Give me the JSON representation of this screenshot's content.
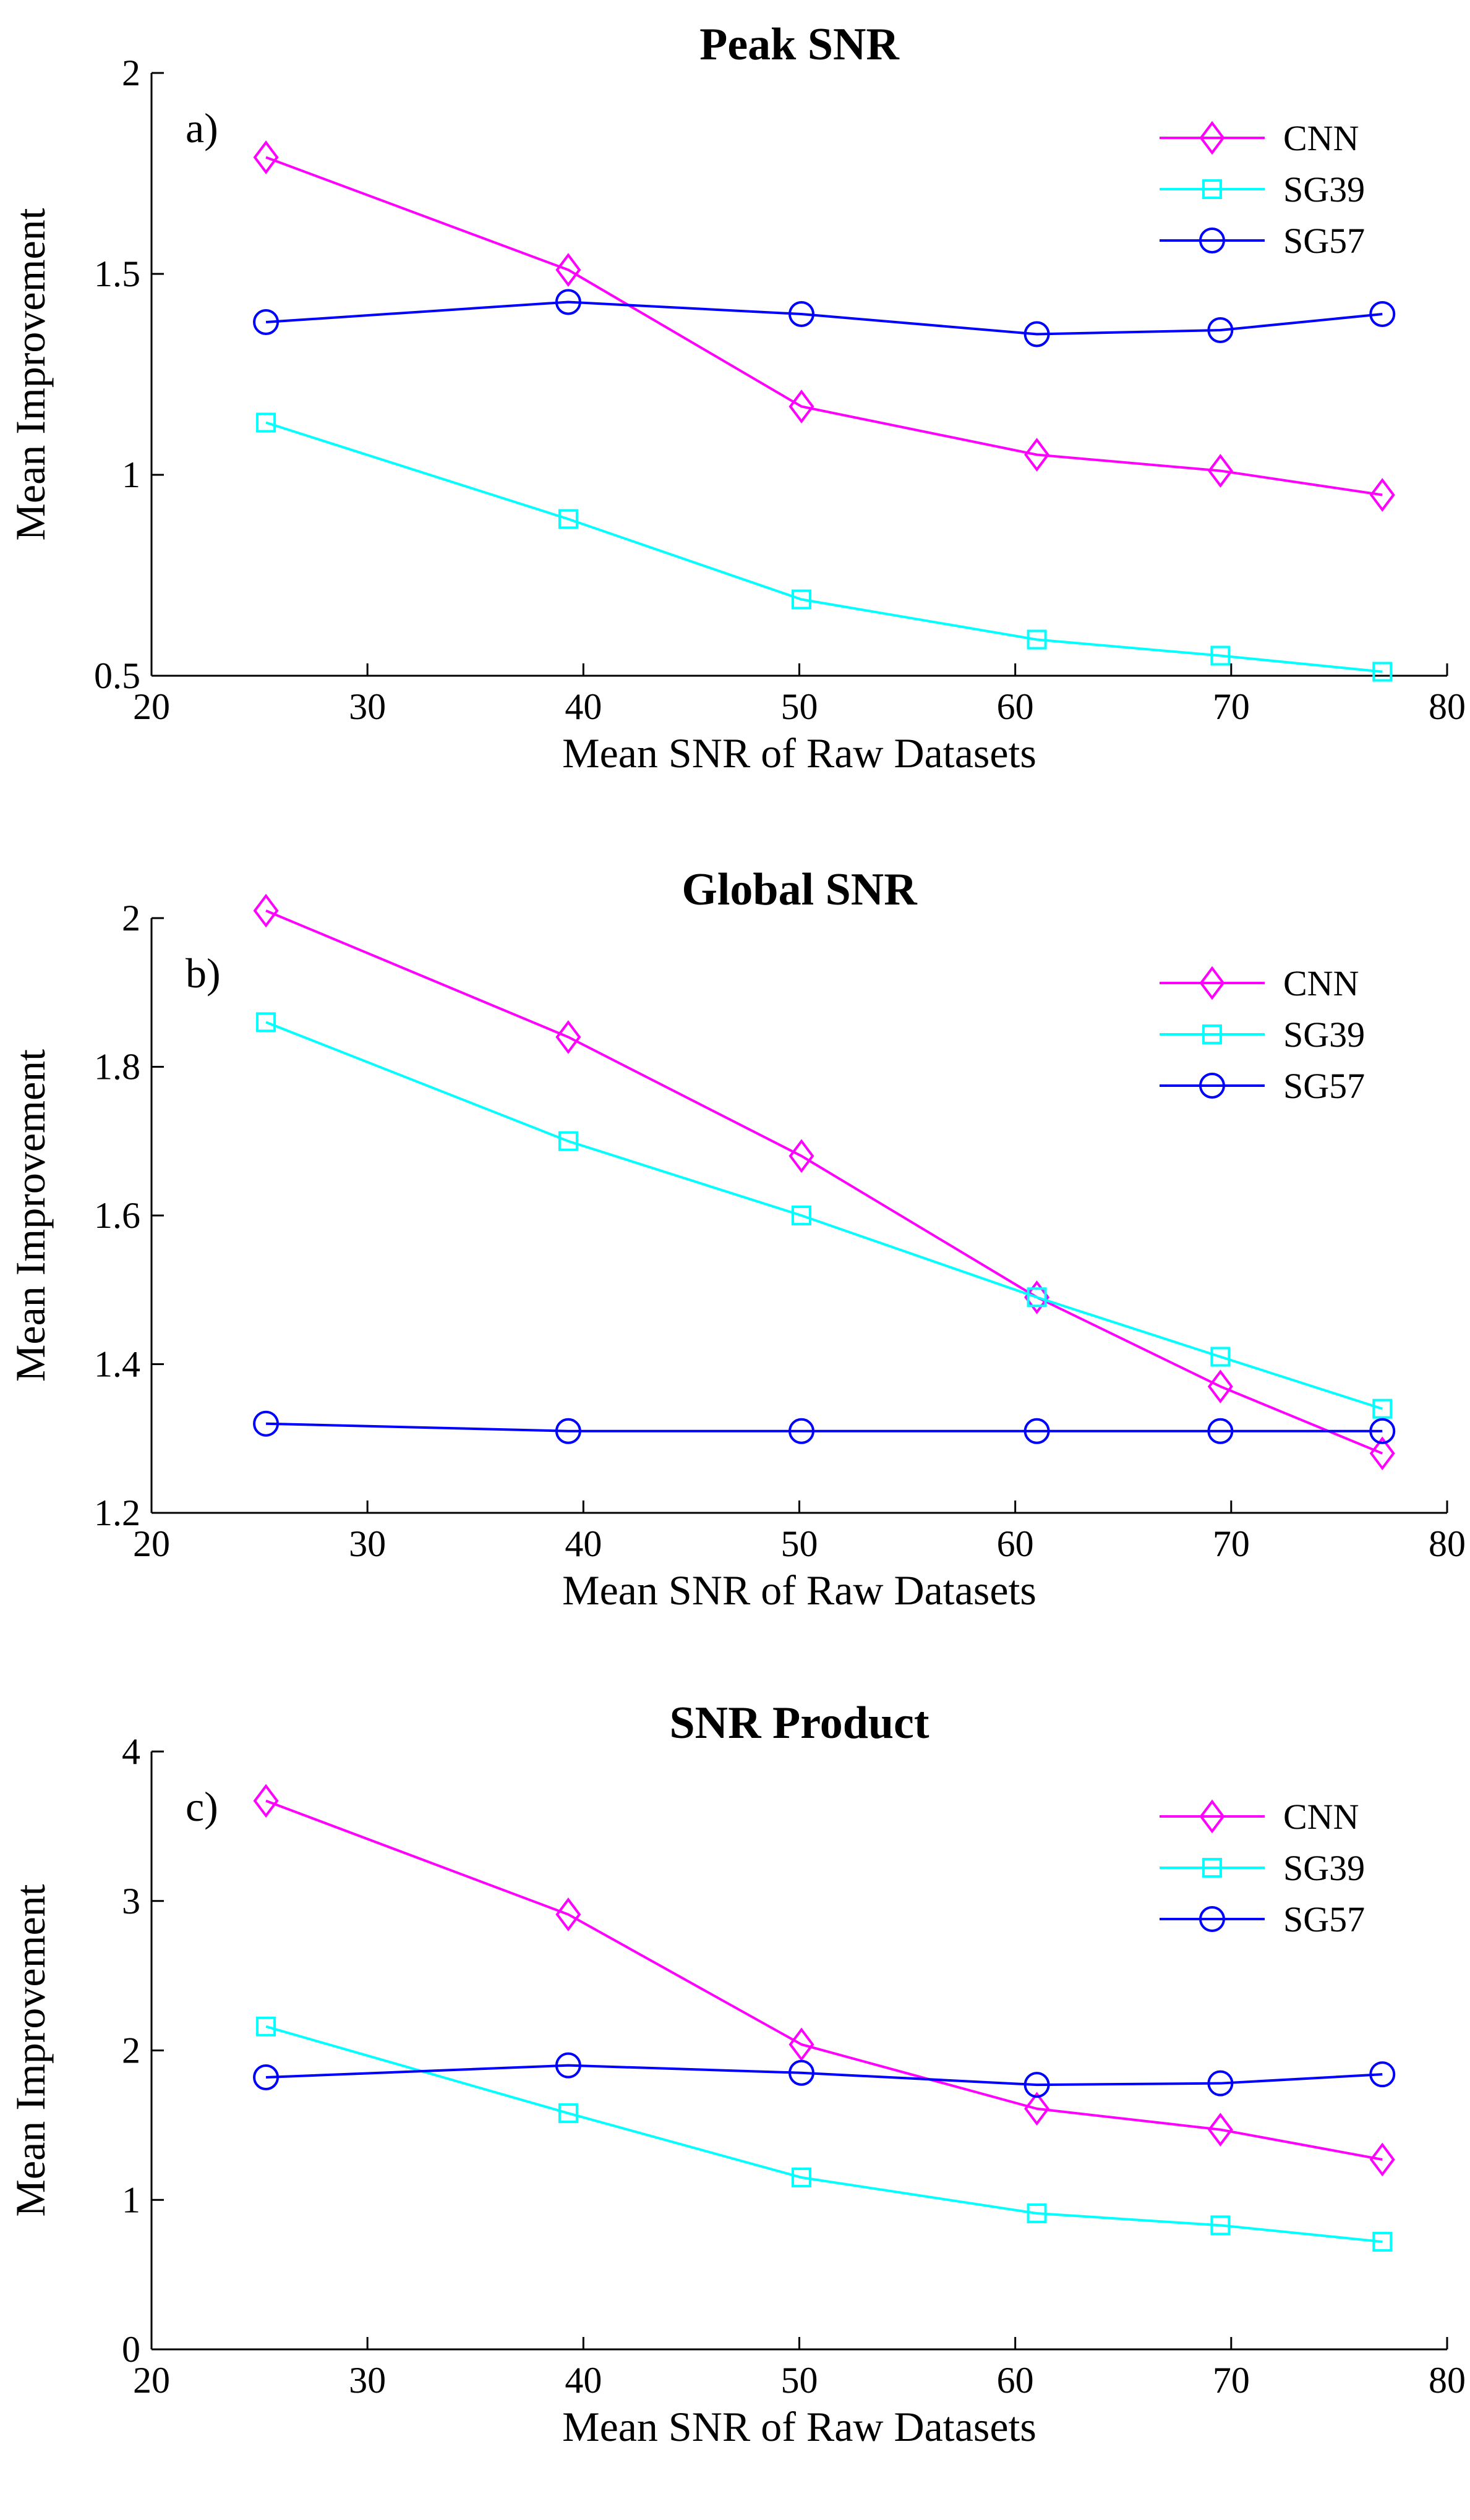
{
  "colors": {
    "cnn": "#ff00ff",
    "sg39": "#00ffff",
    "sg57": "#0000ff",
    "axis": "#000000"
  },
  "chart_data": [
    {
      "type": "line",
      "title": "Peak SNR",
      "panel_label": "a)",
      "xlabel": "Mean SNR of Raw Datasets",
      "ylabel": "Mean Improvement",
      "xlim": [
        20,
        80
      ],
      "ylim": [
        0.5,
        2
      ],
      "xticks": [
        "20",
        "30",
        "40",
        "50",
        "60",
        "70",
        "80"
      ],
      "yticks": [
        "0.5",
        "1",
        "1.5",
        "2"
      ],
      "grid": false,
      "legend": "top-right",
      "x": [
        25.3,
        39.3,
        50.1,
        61.0,
        69.5,
        77.0
      ],
      "series": [
        {
          "name": "CNN",
          "marker": "diamond",
          "color": "#ff00ff",
          "values": [
            1.79,
            1.51,
            1.17,
            1.05,
            1.01,
            0.95
          ]
        },
        {
          "name": "SG39",
          "marker": "square",
          "color": "#00ffff",
          "values": [
            1.13,
            0.89,
            0.69,
            0.59,
            0.55,
            0.51
          ]
        },
        {
          "name": "SG57",
          "marker": "circle",
          "color": "#0000ff",
          "values": [
            1.38,
            1.43,
            1.4,
            1.35,
            1.36,
            1.4
          ]
        }
      ]
    },
    {
      "type": "line",
      "title": "Global SNR",
      "panel_label": "b)",
      "xlabel": "Mean SNR of Raw Datasets",
      "ylabel": "Mean Improvement",
      "xlim": [
        20,
        80
      ],
      "ylim": [
        1.2,
        2.0
      ],
      "xticks": [
        "20",
        "30",
        "40",
        "50",
        "60",
        "70",
        "80"
      ],
      "yticks": [
        "1.2",
        "1.4",
        "1.6",
        "1.8",
        "2"
      ],
      "grid": false,
      "legend": "top-right",
      "x": [
        25.3,
        39.3,
        50.1,
        61.0,
        69.5,
        77.0
      ],
      "series": [
        {
          "name": "CNN",
          "marker": "diamond",
          "color": "#ff00ff",
          "values": [
            2.01,
            1.84,
            1.68,
            1.49,
            1.37,
            1.28
          ]
        },
        {
          "name": "SG39",
          "marker": "square",
          "color": "#00ffff",
          "values": [
            1.86,
            1.7,
            1.6,
            1.49,
            1.41,
            1.34
          ]
        },
        {
          "name": "SG57",
          "marker": "circle",
          "color": "#0000ff",
          "values": [
            1.32,
            1.31,
            1.31,
            1.31,
            1.31,
            1.31
          ]
        }
      ]
    },
    {
      "type": "line",
      "title": "SNR Product",
      "panel_label": "c)",
      "xlabel": "Mean SNR of Raw Datasets",
      "ylabel": "Mean Improvement",
      "xlim": [
        20,
        80
      ],
      "ylim": [
        0,
        4
      ],
      "xticks": [
        "20",
        "30",
        "40",
        "50",
        "60",
        "70",
        "80"
      ],
      "yticks": [
        "0",
        "1",
        "2",
        "3",
        "4"
      ],
      "grid": false,
      "legend": "top-right",
      "x": [
        25.3,
        39.3,
        50.1,
        61.0,
        69.5,
        77.0
      ],
      "series": [
        {
          "name": "CNN",
          "marker": "diamond",
          "color": "#ff00ff",
          "values": [
            3.67,
            2.91,
            2.04,
            1.61,
            1.47,
            1.27
          ]
        },
        {
          "name": "SG39",
          "marker": "square",
          "color": "#00ffff",
          "values": [
            2.16,
            1.58,
            1.15,
            0.91,
            0.83,
            0.72
          ]
        },
        {
          "name": "SG57",
          "marker": "circle",
          "color": "#0000ff",
          "values": [
            1.82,
            1.9,
            1.85,
            1.77,
            1.78,
            1.84
          ]
        }
      ]
    }
  ]
}
